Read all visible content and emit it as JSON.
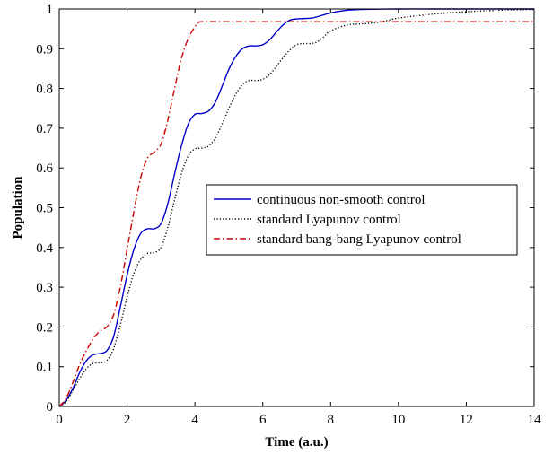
{
  "chart_data": {
    "type": "line",
    "title": "",
    "xlabel": "Time (a.u.)",
    "ylabel": "Population",
    "xlim": [
      0,
      14
    ],
    "ylim": [
      0,
      1
    ],
    "xticks": [
      0,
      2,
      4,
      6,
      8,
      10,
      12,
      14
    ],
    "yticks": [
      0,
      0.1,
      0.2,
      0.3,
      0.4,
      0.5,
      0.6,
      0.7,
      0.8,
      0.9,
      1
    ],
    "xtick_labels": [
      "0",
      "2",
      "4",
      "6",
      "8",
      "10",
      "12",
      "14"
    ],
    "ytick_labels": [
      "0",
      "0.1",
      "0.2",
      "0.3",
      "0.4",
      "0.5",
      "0.6",
      "0.7",
      "0.8",
      "0.9",
      "1"
    ],
    "grid": false,
    "legend_position": "center-right",
    "series": [
      {
        "name": "continuous non-smooth control",
        "color": "#0000cc",
        "style": "solid",
        "x": [
          0,
          0.2,
          0.4,
          0.6,
          0.8,
          1.0,
          1.2,
          1.4,
          1.6,
          1.8,
          2.0,
          2.2,
          2.4,
          2.6,
          2.8,
          3.0,
          3.2,
          3.4,
          3.6,
          3.8,
          4.0,
          4.2,
          4.4,
          4.6,
          4.8,
          5.0,
          5.2,
          5.4,
          5.6,
          5.8,
          6.0,
          6.2,
          6.4,
          6.6,
          6.8,
          7.0,
          7.2,
          7.5,
          8.0,
          8.5,
          9.0,
          10.0,
          11.0,
          12.0,
          13.0,
          14.0
        ],
        "y": [
          0,
          0.015,
          0.045,
          0.085,
          0.115,
          0.13,
          0.133,
          0.14,
          0.175,
          0.25,
          0.33,
          0.395,
          0.435,
          0.447,
          0.447,
          0.46,
          0.51,
          0.585,
          0.655,
          0.71,
          0.735,
          0.737,
          0.743,
          0.765,
          0.805,
          0.848,
          0.88,
          0.9,
          0.907,
          0.907,
          0.91,
          0.922,
          0.942,
          0.96,
          0.972,
          0.975,
          0.976,
          0.978,
          0.99,
          0.997,
          0.999,
          1.0,
          1.0,
          1.0,
          1.0,
          1.0
        ]
      },
      {
        "name": "standard Lyapunov control",
        "color": "#000000",
        "style": "dotted",
        "x": [
          0,
          0.2,
          0.4,
          0.6,
          0.8,
          1.0,
          1.2,
          1.4,
          1.6,
          1.8,
          2.0,
          2.2,
          2.4,
          2.6,
          2.8,
          3.0,
          3.2,
          3.4,
          3.6,
          3.8,
          4.0,
          4.2,
          4.4,
          4.6,
          4.8,
          5.0,
          5.2,
          5.4,
          5.6,
          5.8,
          6.0,
          6.2,
          6.4,
          6.6,
          6.8,
          7.0,
          7.2,
          7.4,
          7.6,
          7.8,
          8.0,
          8.5,
          9.0,
          9.5,
          10.0,
          11.0,
          12.0,
          13.0,
          14.0
        ],
        "y": [
          0,
          0.012,
          0.04,
          0.07,
          0.095,
          0.108,
          0.11,
          0.115,
          0.145,
          0.205,
          0.275,
          0.335,
          0.37,
          0.385,
          0.387,
          0.4,
          0.45,
          0.52,
          0.585,
          0.63,
          0.648,
          0.65,
          0.655,
          0.675,
          0.71,
          0.75,
          0.785,
          0.81,
          0.82,
          0.82,
          0.823,
          0.835,
          0.855,
          0.878,
          0.897,
          0.91,
          0.913,
          0.913,
          0.917,
          0.93,
          0.945,
          0.96,
          0.963,
          0.968,
          0.977,
          0.987,
          0.993,
          0.997,
          0.999
        ]
      },
      {
        "name": "standard bang-bang Lyapunov control",
        "color": "#cc0000",
        "style": "dashdot",
        "x": [
          0,
          0.2,
          0.4,
          0.6,
          0.8,
          1.0,
          1.2,
          1.4,
          1.6,
          1.8,
          2.0,
          2.2,
          2.4,
          2.6,
          2.8,
          3.0,
          3.2,
          3.4,
          3.6,
          3.8,
          4.0,
          4.1,
          4.2,
          5.0,
          6.0,
          8.0,
          10.0,
          12.0,
          14.0
        ],
        "y": [
          0,
          0.02,
          0.06,
          0.105,
          0.14,
          0.17,
          0.19,
          0.2,
          0.23,
          0.3,
          0.395,
          0.49,
          0.575,
          0.625,
          0.64,
          0.66,
          0.72,
          0.8,
          0.875,
          0.925,
          0.955,
          0.965,
          0.968,
          0.968,
          0.968,
          0.968,
          0.968,
          0.968,
          0.968
        ]
      }
    ]
  }
}
